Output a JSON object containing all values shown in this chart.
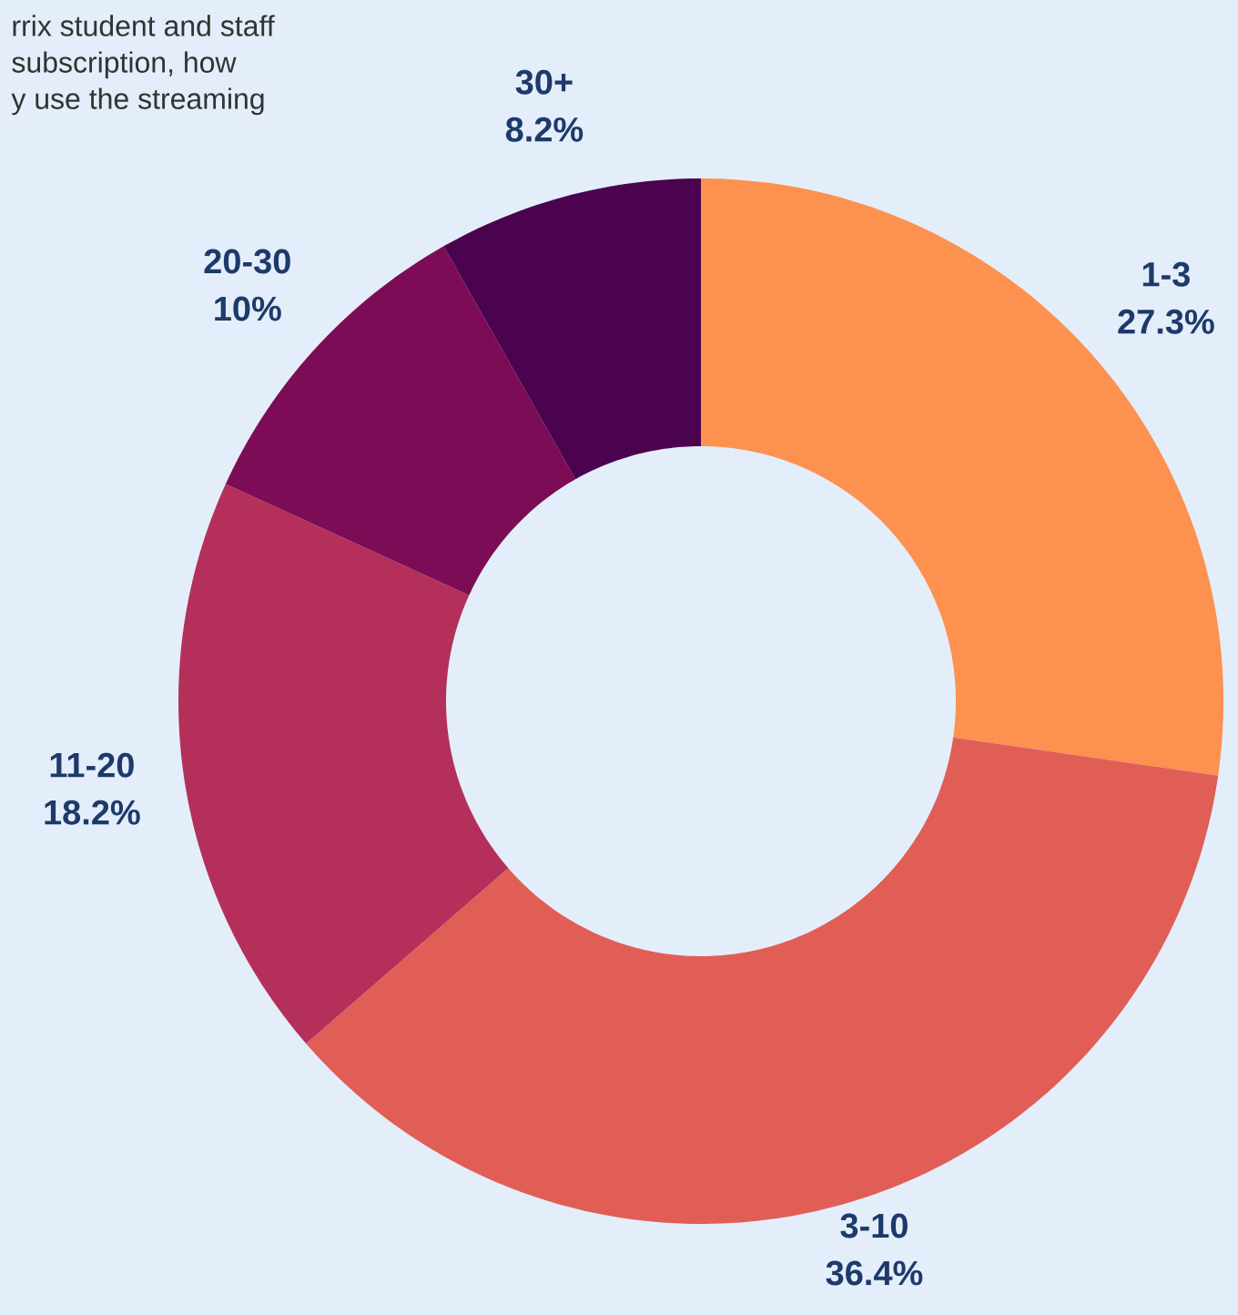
{
  "chart_data": {
    "type": "donut",
    "annotations": [
      "rrix student and staff",
      "subscription, how",
      "y use the streaming"
    ],
    "categories": [
      "1-3",
      "3-10",
      "11-20",
      "20-30",
      "30+"
    ],
    "values": [
      27.3,
      36.4,
      18.2,
      10,
      8.2
    ],
    "value_labels": [
      "27.3%",
      "36.4%",
      "18.2%",
      "10%",
      "8.2%"
    ],
    "colors": [
      "#fd914f",
      "#e15e57",
      "#b4305a",
      "#7d0c56",
      "#4c034f"
    ]
  }
}
